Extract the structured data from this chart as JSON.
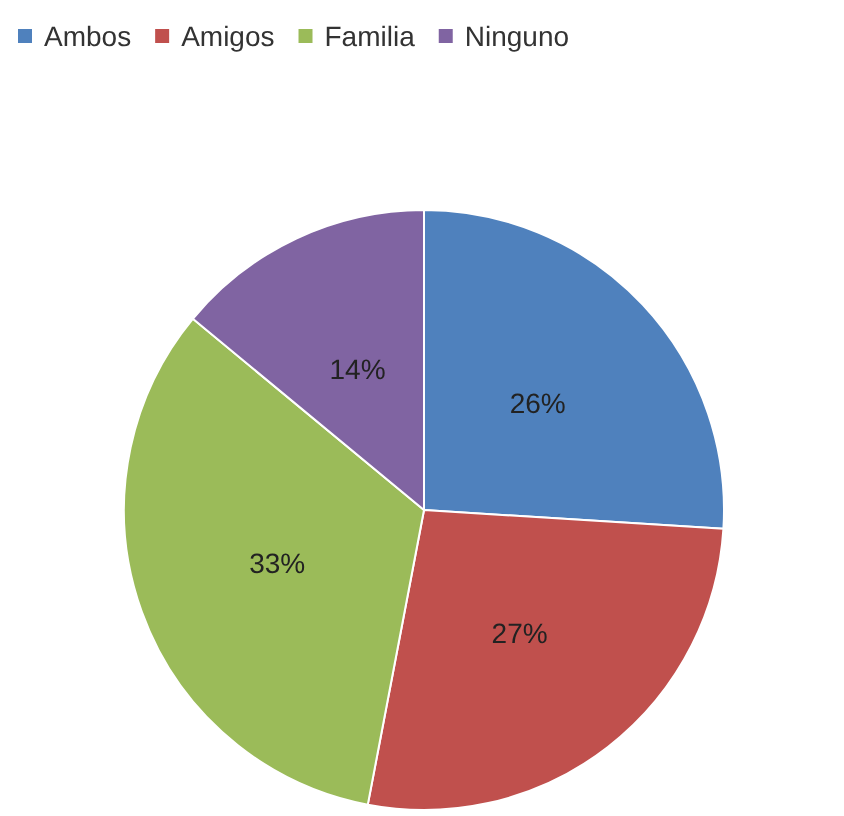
{
  "chart_data": {
    "type": "pie",
    "categories": [
      "Ambos",
      "Amigos",
      "Familia",
      "Ninguno"
    ],
    "values": [
      26,
      27,
      33,
      14
    ],
    "value_labels": [
      "26%",
      "27%",
      "33%",
      "14%"
    ],
    "colors": [
      "#4f81bd",
      "#c0504d",
      "#9bbb59",
      "#8064a2"
    ],
    "legend": "top left"
  }
}
